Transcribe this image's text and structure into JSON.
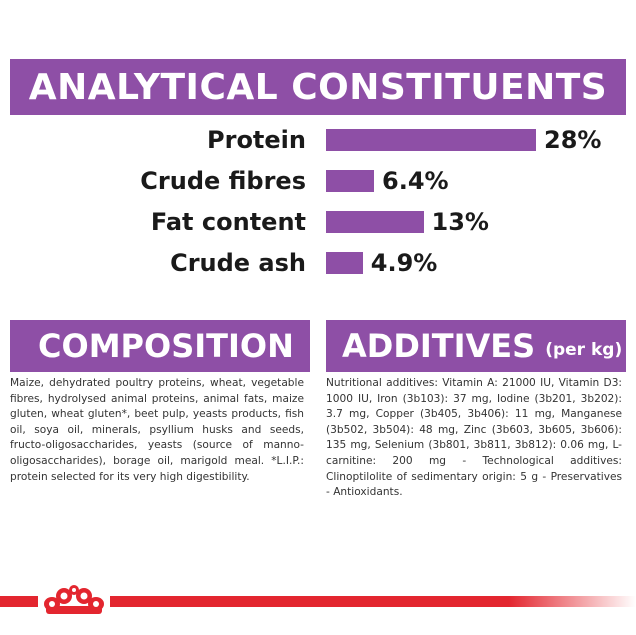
{
  "analytical": {
    "title": "ANALYTICAL CONSTITUENTS",
    "rows": [
      {
        "label": "Protein",
        "value_text": "28%",
        "value": 28
      },
      {
        "label": "Crude fibres",
        "value_text": "6.4%",
        "value": 6.4
      },
      {
        "label": "Fat content",
        "value_text": "13%",
        "value": 13
      },
      {
        "label": "Crude ash",
        "value_text": "4.9%",
        "value": 4.9
      }
    ]
  },
  "chart_data": {
    "type": "bar",
    "categories": [
      "Protein",
      "Crude fibres",
      "Fat content",
      "Crude ash"
    ],
    "values": [
      28,
      6.4,
      13,
      4.9
    ],
    "title": "ANALYTICAL CONSTITUENTS"
  },
  "composition": {
    "title": "COMPOSITION",
    "text": "Maize, dehydrated poultry proteins, wheat, vegetable fibres, hydrolysed animal proteins, animal fats, maize gluten, wheat gluten*, beet pulp, yeasts products, fish oil, soya oil, minerals, psyllium husks and seeds, fructo-oligosaccharides, yeasts (source of manno-oligosaccharides), borage oil, marigold meal. *L.I.P.: protein selected for its very high digestibility."
  },
  "additives": {
    "title": "ADDITIVES",
    "unit": "(per kg)",
    "text": "Nutritional additives: Vitamin A: 21000 IU, Vitamin D3: 1000 IU, Iron (3b103): 37 mg, Iodine (3b201, 3b202): 3.7 mg, Copper (3b405, 3b406): 11 mg, Manganese (3b502, 3b504): 48 mg, Zinc (3b603, 3b605, 3b606): 135 mg, Selenium (3b801, 3b811, 3b812): 0.06 mg, L-carnitine: 200 mg - Technological additives: Clinoptilolite of sedimentary origin: 5 g - Preservatives - Antioxidants."
  },
  "colors": {
    "accent": "#8e4fa6",
    "footer": "#e3262f"
  },
  "footer": {
    "logo_icon": "royal-canin-crown-icon"
  }
}
